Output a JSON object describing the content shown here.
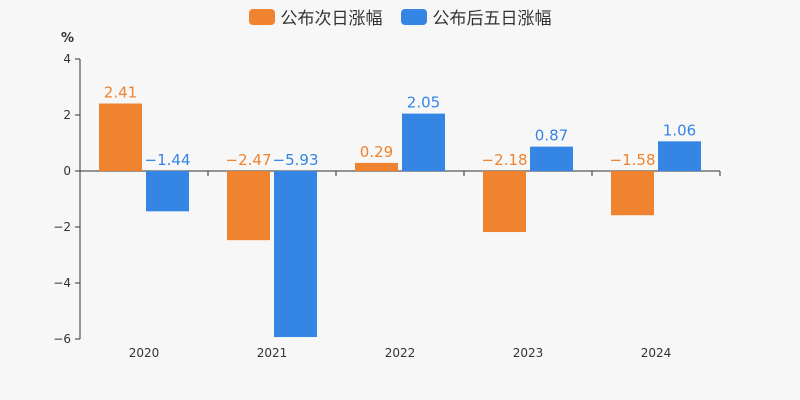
{
  "chart_data": {
    "type": "bar",
    "unit_label": "%",
    "categories": [
      "2020",
      "2021",
      "2022",
      "2023",
      "2024"
    ],
    "series": [
      {
        "name": "公布次日涨幅",
        "color": "#f0832f",
        "values": [
          2.41,
          -2.47,
          0.29,
          -2.18,
          -1.58
        ],
        "labels": [
          "2.41",
          "−2.47",
          "0.29",
          "−2.18",
          "−1.58"
        ]
      },
      {
        "name": "公布后五日涨幅",
        "color": "#3585e5",
        "values": [
          -1.44,
          -5.93,
          2.05,
          0.87,
          1.06
        ],
        "labels": [
          "−1.44",
          "−5.93",
          "2.05",
          "0.87",
          "1.06"
        ]
      }
    ],
    "ylim": [
      -6,
      4
    ],
    "yticks": [
      4,
      2,
      0,
      -2,
      -4,
      -6
    ],
    "ytick_labels": [
      "4",
      "2",
      "0",
      "−2",
      "−4",
      "−6"
    ],
    "grid": false,
    "legend_position": "top-center"
  }
}
